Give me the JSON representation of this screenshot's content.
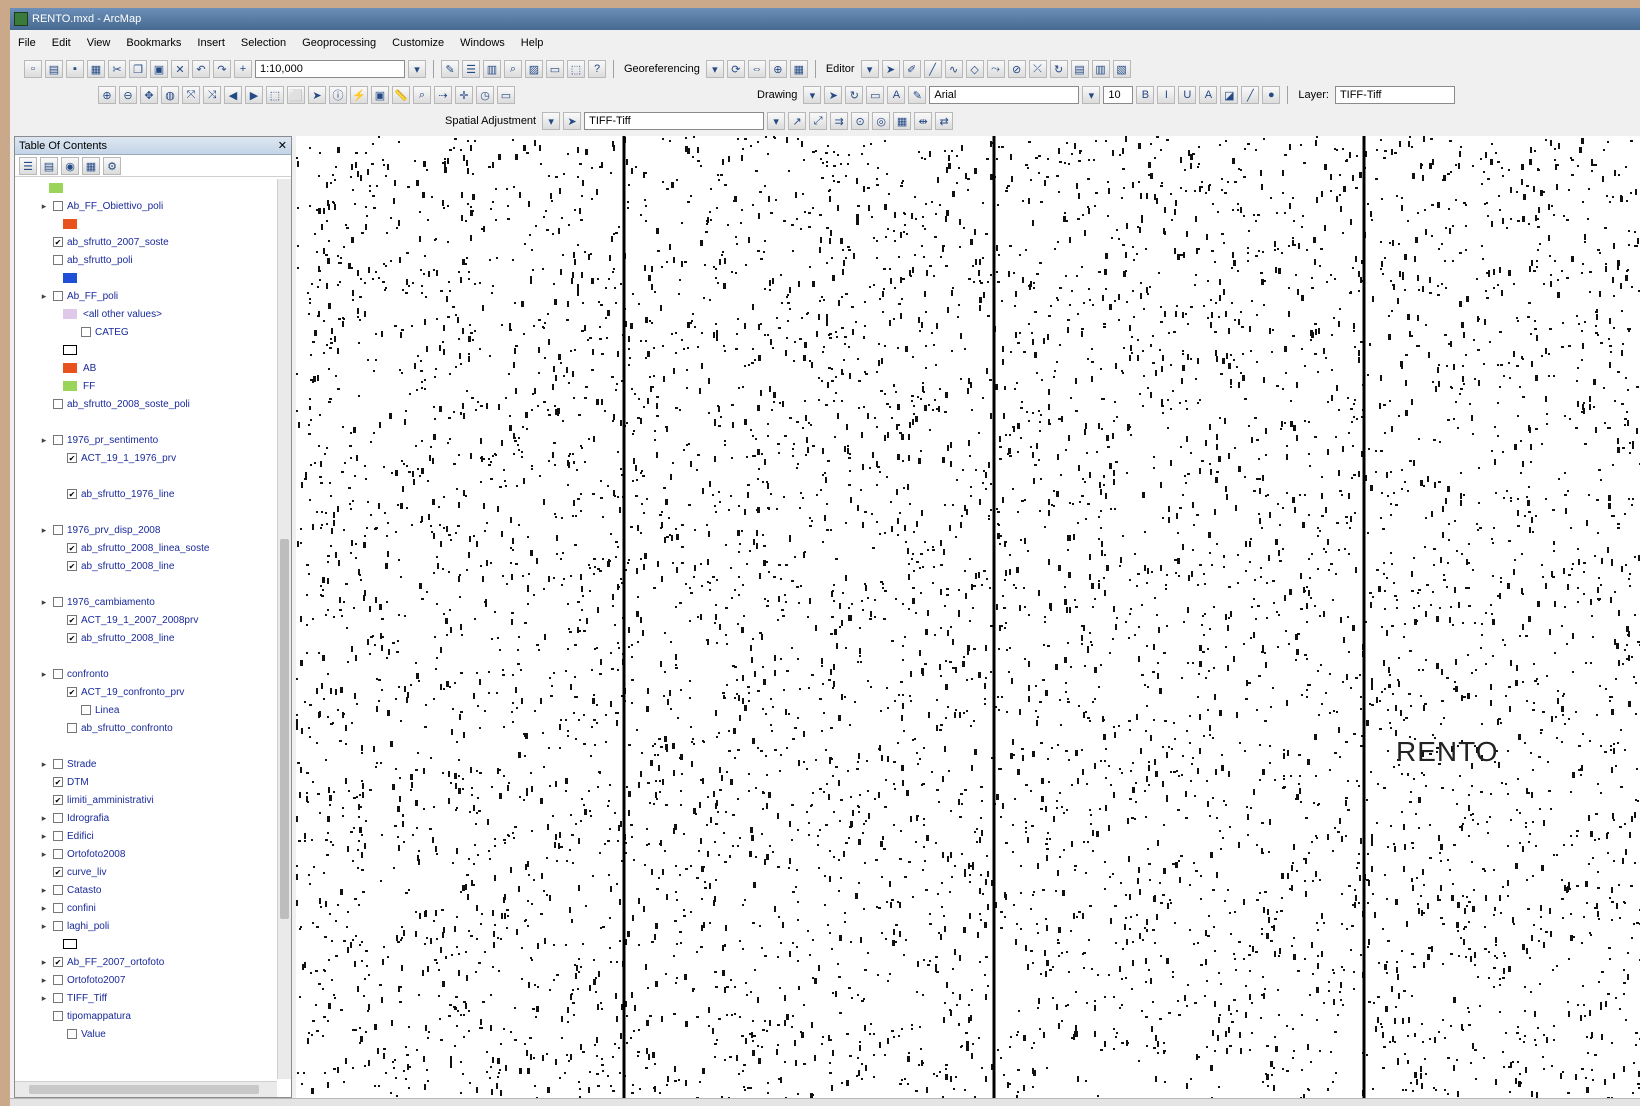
{
  "window": {
    "title": "RENTO.mxd - ArcMap"
  },
  "menus": [
    "File",
    "Edit",
    "View",
    "Bookmarks",
    "Insert",
    "Selection",
    "Geoprocessing",
    "Customize",
    "Windows",
    "Help"
  ],
  "toolbar": {
    "scale": "1:10,000",
    "georef_label": "Georeferencing",
    "editor_label": "Editor",
    "drawing_label": "Drawing",
    "font_name": "Arial",
    "font_size": "10",
    "layer_label": "Layer:",
    "layer_value": "TIFF-Tiff",
    "spatial_label": "Spatial Adjustment"
  },
  "toc": {
    "title": "Table Of Contents",
    "layers": [
      {
        "name": "",
        "swatch": "#9ad45a",
        "indent": 1,
        "expand": "",
        "check": ""
      },
      {
        "name": "Ab_FF_Obiettivo_poli",
        "swatch": "",
        "indent": 1,
        "expand": "▸",
        "check": ""
      },
      {
        "name": "",
        "swatch": "#e8531d",
        "indent": 2,
        "expand": "",
        "check": ""
      },
      {
        "name": "ab_sfrutto_2007_soste",
        "swatch": "",
        "indent": 1,
        "expand": "",
        "check": "✔"
      },
      {
        "name": "ab_sfrutto_poli",
        "swatch": "",
        "indent": 1,
        "expand": "",
        "check": ""
      },
      {
        "name": "",
        "swatch": "#1e4fd6",
        "indent": 2,
        "expand": "",
        "check": ""
      },
      {
        "name": "Ab_FF_poli",
        "swatch": "",
        "indent": 1,
        "expand": "▸",
        "check": ""
      },
      {
        "name": "<all other values>",
        "swatch": "#e0c8e8",
        "indent": 2,
        "expand": "",
        "check": ""
      },
      {
        "name": "CATEG",
        "swatch": "",
        "indent": 3,
        "expand": "",
        "check": ""
      },
      {
        "name": "",
        "swatch": "#ffffff",
        "indent": 2,
        "expand": "",
        "check": ""
      },
      {
        "name": "AB",
        "swatch": "#e8531d",
        "indent": 2,
        "expand": "",
        "check": ""
      },
      {
        "name": "FF",
        "swatch": "#9ad45a",
        "indent": 2,
        "expand": "",
        "check": ""
      },
      {
        "name": "ab_sfrutto_2008_soste_poli",
        "swatch": "",
        "indent": 1,
        "expand": "",
        "check": ""
      },
      {
        "name": "",
        "swatch": "",
        "indent": 2,
        "expand": "",
        "check": ""
      },
      {
        "name": "1976_pr_sentimento",
        "swatch": "",
        "indent": 1,
        "expand": "▸",
        "check": ""
      },
      {
        "name": "ACT_19_1_1976_prv",
        "swatch": "",
        "indent": 2,
        "expand": "",
        "check": "✔"
      },
      {
        "name": "",
        "swatch": "",
        "indent": 3,
        "expand": "",
        "check": ""
      },
      {
        "name": "ab_sfrutto_1976_line",
        "swatch": "",
        "indent": 2,
        "expand": "",
        "check": "✔"
      },
      {
        "name": "",
        "swatch": "",
        "indent": 3,
        "expand": "",
        "check": ""
      },
      {
        "name": "1976_prv_disp_2008",
        "swatch": "",
        "indent": 1,
        "expand": "▸",
        "check": ""
      },
      {
        "name": "ab_sfrutto_2008_linea_soste",
        "swatch": "",
        "indent": 2,
        "expand": "",
        "check": "✔"
      },
      {
        "name": "ab_sfrutto_2008_line",
        "swatch": "",
        "indent": 2,
        "expand": "",
        "check": "✔"
      },
      {
        "name": "",
        "swatch": "",
        "indent": 3,
        "expand": "",
        "check": ""
      },
      {
        "name": "1976_cambiamento",
        "swatch": "",
        "indent": 1,
        "expand": "▸",
        "check": ""
      },
      {
        "name": "ACT_19_1_2007_2008prv",
        "swatch": "",
        "indent": 2,
        "expand": "",
        "check": "✔"
      },
      {
        "name": "ab_sfrutto_2008_line",
        "swatch": "",
        "indent": 2,
        "expand": "",
        "check": "✔"
      },
      {
        "name": "",
        "swatch": "",
        "indent": 3,
        "expand": "",
        "check": ""
      },
      {
        "name": "confronto",
        "swatch": "",
        "indent": 1,
        "expand": "▸",
        "check": ""
      },
      {
        "name": "ACT_19_confronto_prv",
        "swatch": "",
        "indent": 2,
        "expand": "",
        "check": "✔"
      },
      {
        "name": "Linea",
        "swatch": "",
        "indent": 3,
        "expand": "",
        "check": ""
      },
      {
        "name": "ab_sfrutto_confronto",
        "swatch": "",
        "indent": 2,
        "expand": "",
        "check": ""
      },
      {
        "name": "",
        "swatch": "",
        "indent": 3,
        "expand": "",
        "check": ""
      },
      {
        "name": "Strade",
        "swatch": "",
        "indent": 1,
        "expand": "▸",
        "check": ""
      },
      {
        "name": "DTM",
        "swatch": "",
        "indent": 1,
        "expand": "",
        "check": "✔"
      },
      {
        "name": "limiti_amministrativi",
        "swatch": "",
        "indent": 1,
        "expand": "",
        "check": "✔"
      },
      {
        "name": "Idrografia",
        "swatch": "",
        "indent": 1,
        "expand": "▸",
        "check": ""
      },
      {
        "name": "Edifici",
        "swatch": "",
        "indent": 1,
        "expand": "▸",
        "check": ""
      },
      {
        "name": "Ortofoto2008",
        "swatch": "",
        "indent": 1,
        "expand": "▸",
        "check": ""
      },
      {
        "name": "curve_liv",
        "swatch": "",
        "indent": 1,
        "expand": "",
        "check": "✔"
      },
      {
        "name": "Catasto",
        "swatch": "",
        "indent": 1,
        "expand": "▸",
        "check": ""
      },
      {
        "name": "confini",
        "swatch": "",
        "indent": 1,
        "expand": "▸",
        "check": ""
      },
      {
        "name": "laghi_poli",
        "swatch": "",
        "indent": 1,
        "expand": "▸",
        "check": ""
      },
      {
        "name": "",
        "swatch": "#ffffff",
        "indent": 2,
        "expand": "",
        "check": ""
      },
      {
        "name": "Ab_FF_2007_ortofoto",
        "swatch": "",
        "indent": 1,
        "expand": "▸",
        "check": "✔"
      },
      {
        "name": "Ortofoto2007",
        "swatch": "",
        "indent": 1,
        "expand": "▸",
        "check": ""
      },
      {
        "name": "TIFF_Tiff",
        "swatch": "",
        "indent": 1,
        "expand": "▸",
        "check": ""
      },
      {
        "name": "tipomappatura",
        "swatch": "",
        "indent": 1,
        "expand": "",
        "check": ""
      },
      {
        "name": "Value",
        "swatch": "",
        "indent": 2,
        "expand": "",
        "check": ""
      }
    ]
  },
  "map": {
    "label": "RENTO"
  }
}
